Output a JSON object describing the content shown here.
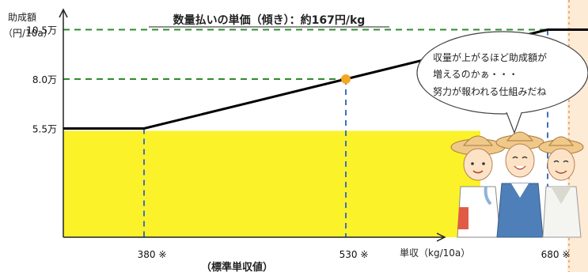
{
  "chart_data": {
    "type": "line",
    "title": "数量払いの単価（傾き）：約167円/kg",
    "ylabel_line1": "助成額",
    "ylabel_line2": "（円/10a）",
    "xlabel": "単収（kg/10a）",
    "x": [
      320,
      380,
      530,
      680,
      710
    ],
    "y": [
      5.5,
      5.5,
      8.0,
      10.5,
      10.5
    ],
    "xlim": [
      320,
      720
    ],
    "ylim": [
      0,
      12
    ],
    "x_ticks": [
      {
        "value": 380,
        "label": "380 ※"
      },
      {
        "value": 530,
        "label": "530 ※"
      },
      {
        "value": 680,
        "label": "680 ※"
      }
    ],
    "y_ticks": [
      {
        "value": 5.5,
        "label": "5.5万"
      },
      {
        "value": 8.0,
        "label": "8.0万"
      },
      {
        "value": 10.5,
        "label": "10.5万"
      }
    ],
    "highlight_point": {
      "x": 530,
      "y": 8.0,
      "color": "#f5a623"
    },
    "fixed_area": {
      "x_start": 320,
      "x_end": 630,
      "y": 5.5,
      "color": "#fbf22a"
    },
    "sub_label": "（標準単収値）",
    "grid": false,
    "line_color": "#000000",
    "guide_color_h": "#2e8b2e",
    "guide_color_v": "#3d6fc4"
  },
  "bubble": {
    "lines": [
      "収量が上がるほど助成額が",
      "増えるのかぁ・・・",
      "努力が報われる仕組みだね"
    ]
  },
  "illustration": {
    "name": "three-farmers-illustration"
  },
  "side_panel_color": "#fdebd6"
}
